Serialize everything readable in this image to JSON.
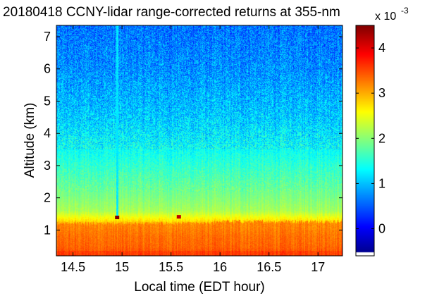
{
  "chart_data": {
    "type": "heatmap",
    "title": "20180418 CCNY-lidar range-corrected returns at 355-nm",
    "xlabel": "Local time (EDT hour)",
    "ylabel": "Altitude (km)",
    "xlim": [
      14.33,
      17.25
    ],
    "ylim": [
      0.2,
      7.35
    ],
    "x_ticks": [
      "14.5",
      "15",
      "15.5",
      "16",
      "16.5",
      "17"
    ],
    "x_tick_values": [
      14.5,
      15,
      15.5,
      16,
      16.5,
      17
    ],
    "y_ticks": [
      "1",
      "2",
      "3",
      "4",
      "5",
      "6",
      "7"
    ],
    "y_tick_values": [
      1,
      2,
      3,
      4,
      5,
      6,
      7
    ],
    "colorbar": {
      "colormap": "jet",
      "range": [
        -0.6,
        4.5
      ],
      "ticks": [
        "0",
        "1",
        "2",
        "3",
        "4"
      ],
      "tick_values": [
        0,
        1,
        2,
        3,
        4
      ],
      "scale_base": "x 10",
      "scale_exponent": "-3"
    },
    "profile": {
      "altitude_km": [
        0.2,
        0.5,
        0.8,
        1.1,
        1.3,
        1.6,
        2.0,
        2.5,
        3.0,
        3.5,
        4.0,
        4.5,
        5.0,
        5.5,
        6.0,
        6.5,
        7.0,
        7.35
      ],
      "value_e3": [
        3.5,
        3.35,
        3.3,
        3.2,
        2.7,
        2.15,
        1.95,
        1.75,
        1.55,
        1.35,
        1.2,
        1.05,
        0.95,
        0.85,
        0.75,
        0.7,
        0.65,
        0.6
      ]
    },
    "pbl_top_km": 1.2,
    "features": [
      {
        "type": "vertical_streak",
        "time_hour": 14.95,
        "from_km": 1.4,
        "to_km": 7.35,
        "value_e3": 1.2
      },
      {
        "type": "spot",
        "time_hour": 14.95,
        "altitude_km": 1.38,
        "value_e3": 4.5
      },
      {
        "type": "spot",
        "time_hour": 15.58,
        "altitude_km": 1.4,
        "value_e3": 4.2
      }
    ]
  }
}
